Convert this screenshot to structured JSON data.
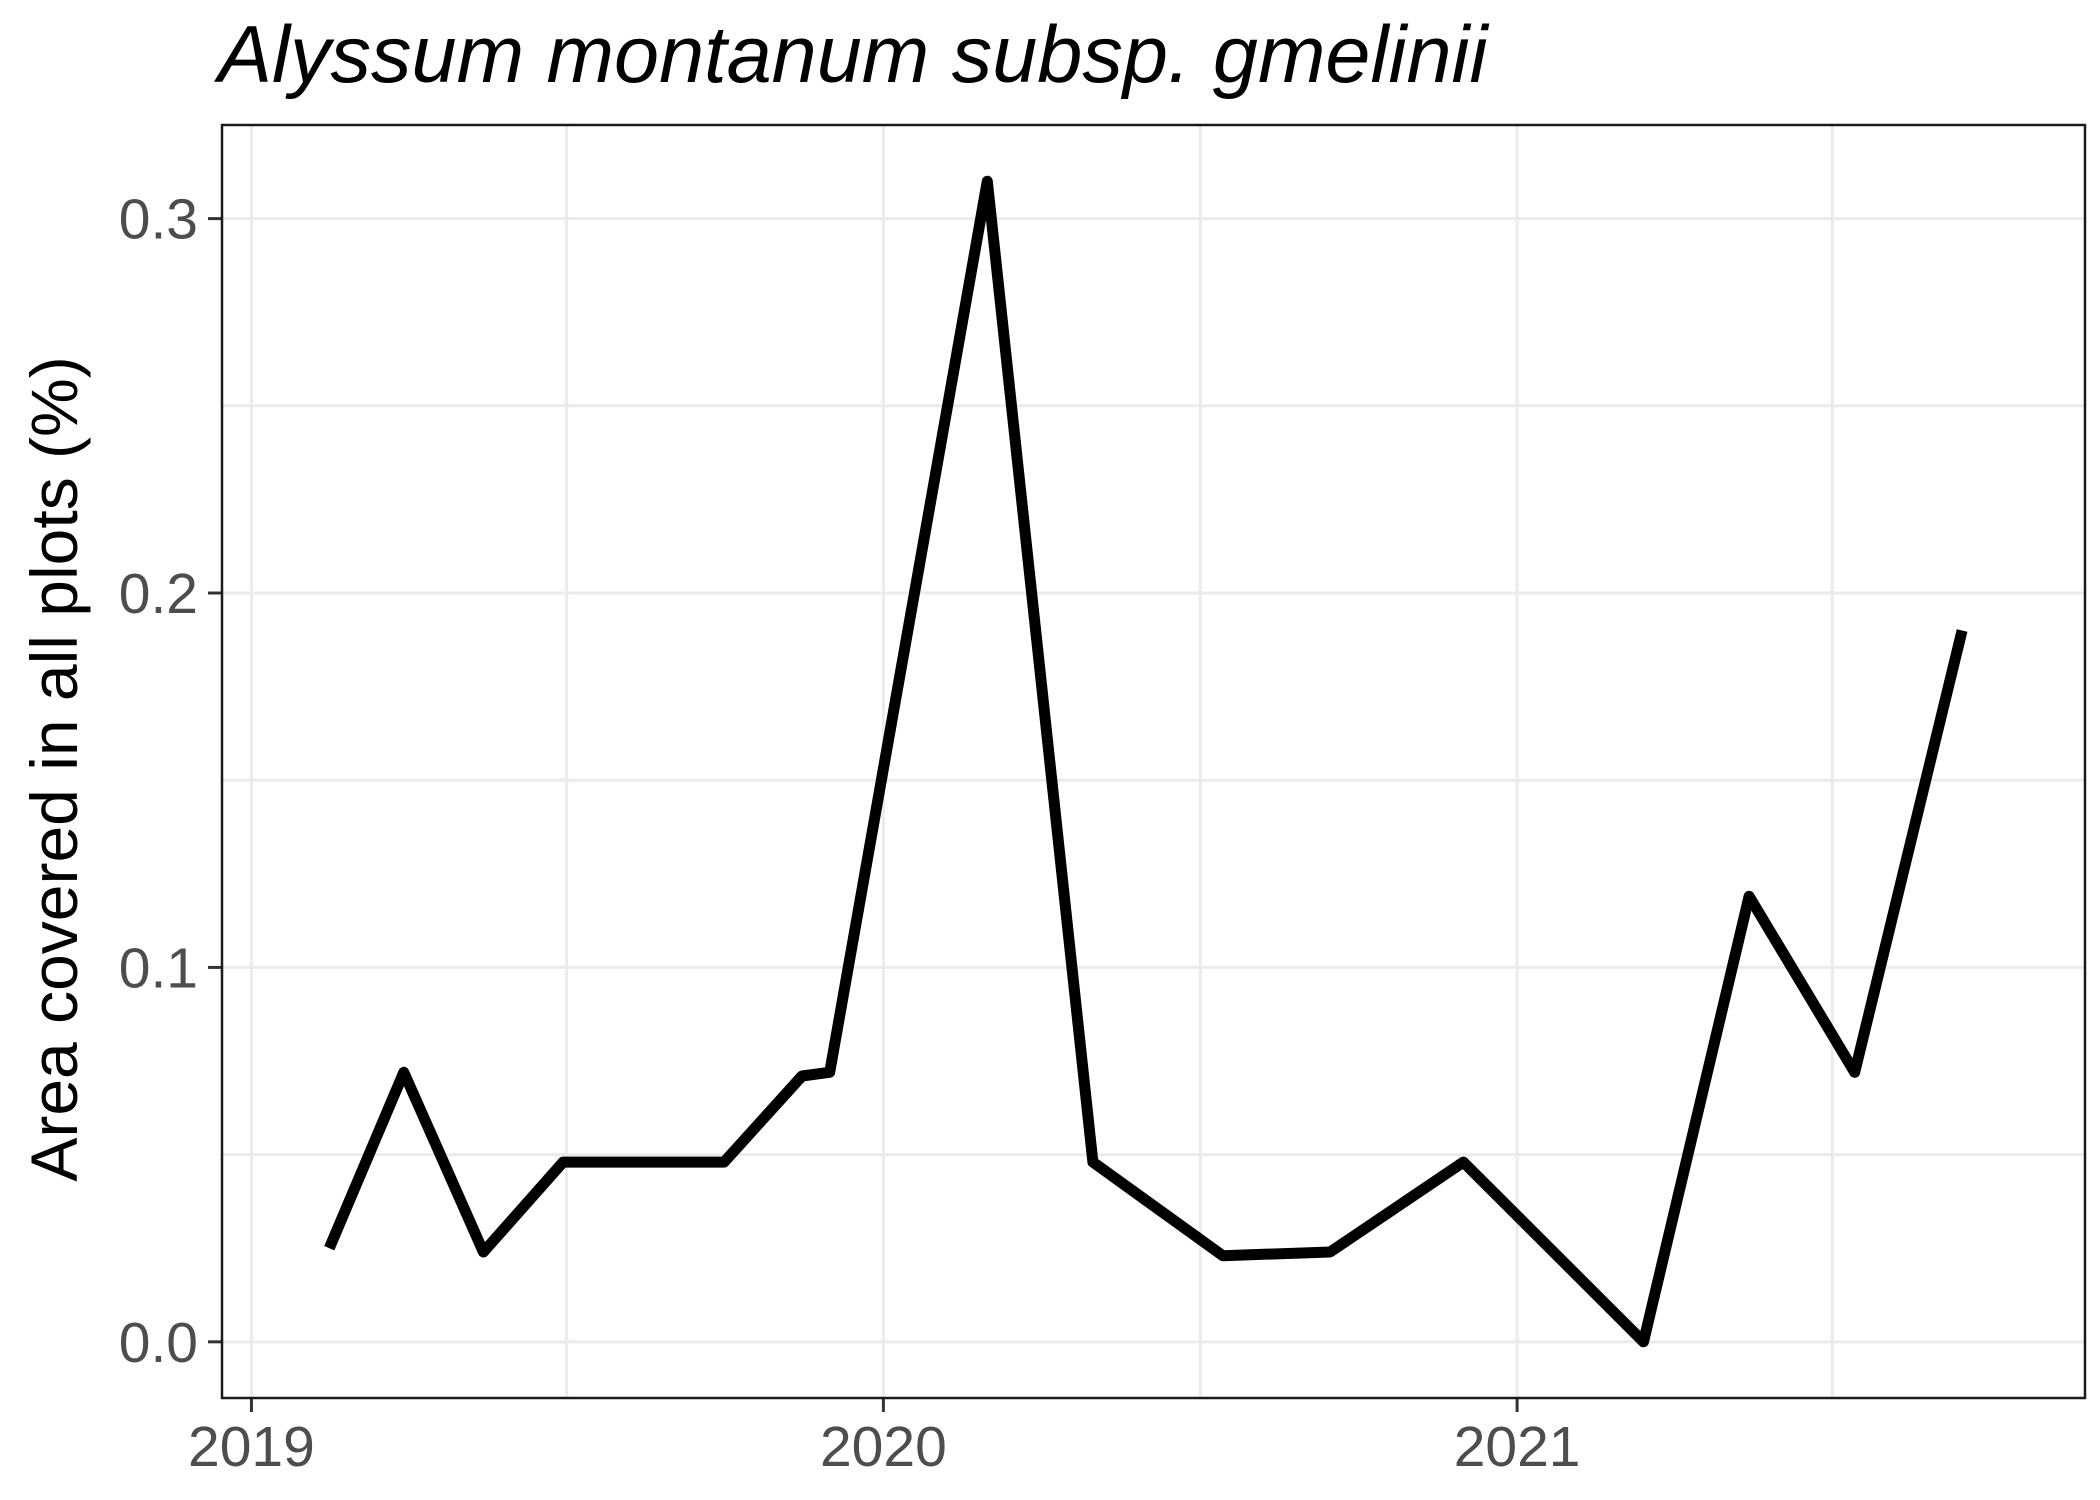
{
  "chart_data": {
    "type": "line",
    "title": "Alyssum montanum subsp. gmelinii",
    "xlabel": "",
    "ylabel": "Area covered in all plots (%)",
    "x_ticks": [
      "2019",
      "2020",
      "2021"
    ],
    "y_ticks": [
      "0.0",
      "0.1",
      "0.2",
      "0.3"
    ],
    "ylim": [
      -0.015,
      0.325
    ],
    "grid": true,
    "legend": "none",
    "line_color": "#000000",
    "series": [
      {
        "x": [
          "2019-02-15",
          "2019-03-30",
          "2019-05-15",
          "2019-06-30",
          "2019-08-15",
          "2019-10-01",
          "2019-11-15",
          "2019-12-01",
          "2020-03-01",
          "2020-05-01",
          "2020-07-15",
          "2020-09-15",
          "2020-12-01",
          "2021-03-15",
          "2021-05-15",
          "2021-07-15",
          "2021-09-15"
        ],
        "y": [
          0.025,
          0.072,
          0.024,
          0.048,
          0.048,
          0.048,
          0.071,
          0.072,
          0.31,
          0.048,
          0.023,
          0.024,
          0.048,
          0.0,
          0.119,
          0.072,
          0.19
        ]
      }
    ]
  }
}
